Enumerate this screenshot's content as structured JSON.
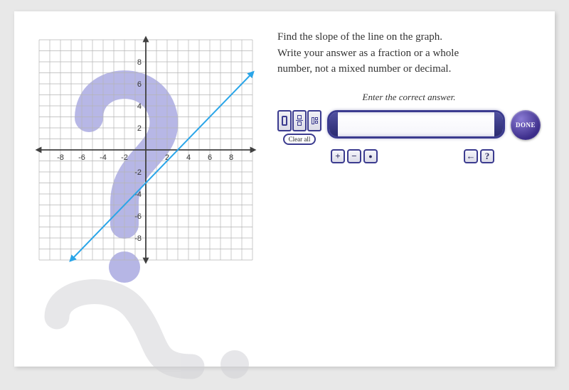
{
  "question": {
    "line1": "Find the slope of the line on the graph.",
    "line2": "Write your answer as a fraction or a whole",
    "line3": "number, not a mixed number or decimal."
  },
  "hint": "Enter the correct answer.",
  "buttons": {
    "clear_all": "Clear all",
    "done": "DONE",
    "plus": "+",
    "minus": "−",
    "dot": "●",
    "back": "←",
    "help": "?"
  },
  "answer_value": "",
  "graph": {
    "type": "line",
    "xlim": [
      -10,
      10
    ],
    "ylim": [
      -10,
      10
    ],
    "xtick_step": 2,
    "ytick_step": 2,
    "x_labels": [
      -8,
      -6,
      -4,
      -2,
      2,
      4,
      6,
      8
    ],
    "y_labels": [
      -8,
      -6,
      -4,
      -2,
      2,
      4,
      6,
      8
    ],
    "grid_color": "#b5b5b5",
    "axis_color": "#404040",
    "background_color": "#ffffff",
    "line_color": "#2aa5e8",
    "line_width": 2,
    "line_points": [
      [
        -7,
        -10
      ],
      [
        10,
        7
      ]
    ],
    "label_fontsize": 11,
    "label_color": "#333333"
  },
  "decor": {
    "q1_color": "#7b7bd1",
    "q2_color": "#cfcfd4"
  }
}
